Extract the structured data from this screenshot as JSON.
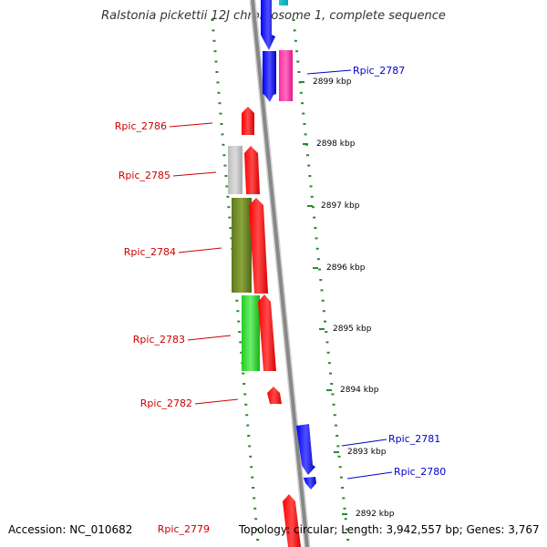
{
  "title": "Ralstonia pickettii 12J chromosome 1, complete sequence",
  "accession_text": "Accession: NC_010682",
  "topology_text": "Topology: circular; Length: 3,942,557 bp; Genes: 3,767",
  "colors": {
    "backbone": "#8c8c8c",
    "tick": "#2a8a2a",
    "label_minus": "#cc0000",
    "label_plus": "#0000cc"
  },
  "scale_labels": [
    "2899 kbp",
    "2898 kbp",
    "2897 kbp",
    "2896 kbp",
    "2895 kbp",
    "2894 kbp",
    "2893 kbp",
    "2892 kbp"
  ],
  "genes": [
    {
      "name": "Rpic_2787",
      "strand": "plus",
      "color": "#0000ee"
    },
    {
      "name": "Rpic_2786",
      "strand": "minus",
      "color": "#ff0000"
    },
    {
      "name": "Rpic_2785",
      "strand": "minus",
      "color": "#ff0000"
    },
    {
      "name": "Rpic_2784",
      "strand": "minus",
      "color": "#ff0000"
    },
    {
      "name": "Rpic_2783",
      "strand": "minus",
      "color": "#ff0000"
    },
    {
      "name": "Rpic_2782",
      "strand": "minus",
      "color": "#ff0000"
    },
    {
      "name": "Rpic_2781",
      "strand": "plus",
      "color": "#0000ee"
    },
    {
      "name": "Rpic_2780",
      "strand": "plus",
      "color": "#0000ee"
    },
    {
      "name": "Rpic_2779",
      "strand": "minus",
      "color": "#ff0000"
    }
  ]
}
